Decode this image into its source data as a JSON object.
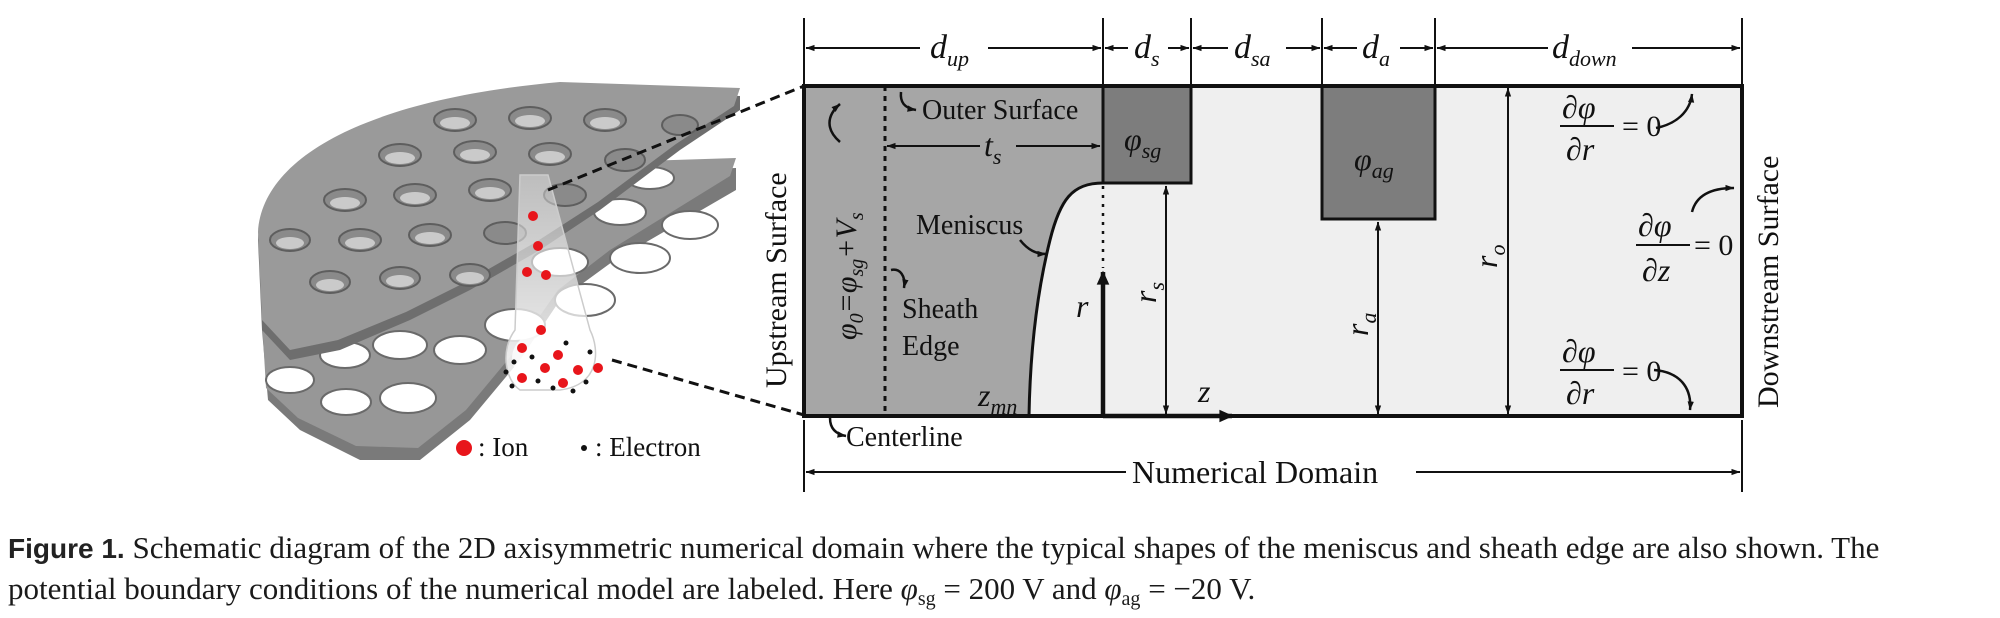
{
  "diagram": {
    "dims": {
      "d_up": "d",
      "d_up_sub": "up",
      "d_s": "d",
      "d_s_sub": "s",
      "d_sa": "d",
      "d_sa_sub": "sa",
      "d_a": "d",
      "d_a_sub": "a",
      "d_down": "d",
      "d_down_sub": "down"
    },
    "labels": {
      "outer_surface": "Outer Surface",
      "t_s": "t",
      "t_s_sub": "s",
      "meniscus": "Meniscus",
      "sheath_edge_1": "Sheath",
      "sheath_edge_2": "Edge",
      "upstream_surface": "Upstream Surface",
      "downstream_surface": "Downstream Surface",
      "centerline": "Centerline",
      "numerical_domain": "Numerical Domain",
      "phi_sg": "φ",
      "phi_sg_sub": "sg",
      "phi_ag": "φ",
      "phi_ag_sub": "ag",
      "bc_upstream_a": "φ",
      "bc_upstream_b": "0",
      "bc_upstream_c": "=φ",
      "bc_upstream_d": "sg",
      "bc_upstream_e": "+V",
      "bc_upstream_f": "s",
      "r_axis": "r",
      "z_axis": "z",
      "r_s": "r",
      "r_s_sub": "s",
      "r_a": "r",
      "r_a_sub": "a",
      "r_o": "r",
      "r_o_sub": "o",
      "z_mn": "z",
      "z_mn_sub": "mn",
      "dphi": "∂φ",
      "dr": "∂r",
      "dz": "∂z",
      "eq_zero": "= 0"
    },
    "legend": {
      "ion": ": Ion",
      "electron": ": Electron"
    },
    "colors": {
      "grid_fill": "#8f8f8f",
      "grid_dark": "#6e6e6e",
      "hole_fill": "#ffffff",
      "plasma_region": "#a6a6a6",
      "electrode_fill": "#7d7d7d",
      "domain_fill": "#efefef",
      "ion": "#e8151b",
      "electron": "#111111"
    }
  },
  "caption": {
    "label": "Figure 1.",
    "text_1": " Schematic diagram of the 2D axisymmetric numerical domain where the typical shapes of the meniscus and sheath edge are also shown. The potential boundary conditions of the numerical model are labeled. Here ",
    "phi_sg": "φ",
    "phi_sg_sub": "sg",
    "text_2": " = 200 V and ",
    "phi_ag": "φ",
    "phi_ag_sub": "ag",
    "text_3": " = −20 V."
  }
}
